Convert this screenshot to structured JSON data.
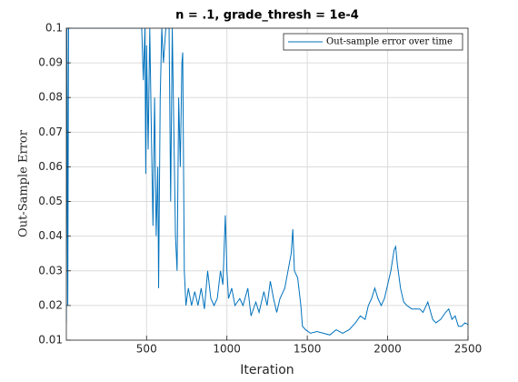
{
  "chart_data": {
    "type": "line",
    "title": "n = .1, grade_thresh = 1e-4",
    "xlabel": "Iteration",
    "ylabel": "Out-Sample Error",
    "x": [
      1,
      5,
      10,
      15,
      20,
      100,
      200,
      300,
      400,
      460,
      470,
      480,
      490,
      495,
      500,
      510,
      520,
      530,
      540,
      550,
      560,
      570,
      575,
      585,
      595,
      605,
      620,
      640,
      650,
      660,
      670,
      680,
      690,
      700,
      710,
      720,
      725,
      735,
      745,
      760,
      780,
      800,
      820,
      840,
      860,
      880,
      900,
      920,
      940,
      960,
      975,
      990,
      1000,
      1010,
      1030,
      1050,
      1080,
      1100,
      1130,
      1150,
      1180,
      1200,
      1230,
      1250,
      1270,
      1290,
      1310,
      1330,
      1360,
      1380,
      1400,
      1410,
      1420,
      1440,
      1460,
      1470,
      1490,
      1520,
      1560,
      1600,
      1640,
      1680,
      1720,
      1760,
      1800,
      1830,
      1860,
      1880,
      1900,
      1920,
      1940,
      1960,
      1980,
      2000,
      2020,
      2040,
      2050,
      2060,
      2080,
      2100,
      2120,
      2150,
      2200,
      2220,
      2250,
      2280,
      2300,
      2330,
      2360,
      2380,
      2400,
      2420,
      2440,
      2460,
      2480,
      2500
    ],
    "series": [
      {
        "name": "Out-sample error over time",
        "color": "#0072bd",
        "values": [
          0.015,
          0.1,
          0.02,
          0.1,
          0.1,
          0.1,
          0.1,
          0.1,
          0.1,
          0.1,
          0.1,
          0.085,
          0.1,
          0.058,
          0.095,
          0.065,
          0.1,
          0.07,
          0.043,
          0.08,
          0.04,
          0.06,
          0.025,
          0.08,
          0.1,
          0.09,
          0.1,
          0.1,
          0.05,
          0.1,
          0.07,
          0.04,
          0.03,
          0.08,
          0.06,
          0.09,
          0.093,
          0.03,
          0.02,
          0.025,
          0.02,
          0.024,
          0.02,
          0.025,
          0.019,
          0.03,
          0.022,
          0.02,
          0.022,
          0.03,
          0.026,
          0.046,
          0.03,
          0.022,
          0.025,
          0.02,
          0.022,
          0.02,
          0.025,
          0.017,
          0.021,
          0.018,
          0.024,
          0.02,
          0.027,
          0.022,
          0.018,
          0.022,
          0.025,
          0.03,
          0.035,
          0.042,
          0.03,
          0.028,
          0.02,
          0.014,
          0.013,
          0.012,
          0.0125,
          0.012,
          0.0115,
          0.013,
          0.012,
          0.013,
          0.015,
          0.017,
          0.016,
          0.02,
          0.022,
          0.025,
          0.022,
          0.02,
          0.022,
          0.026,
          0.03,
          0.036,
          0.037,
          0.032,
          0.025,
          0.021,
          0.02,
          0.019,
          0.019,
          0.018,
          0.021,
          0.016,
          0.015,
          0.016,
          0.018,
          0.019,
          0.016,
          0.017,
          0.014,
          0.014,
          0.015,
          0.0145
        ]
      }
    ],
    "xlim": [
      1,
      2500
    ],
    "xticks": [
      500,
      1000,
      1500,
      2000,
      2500
    ],
    "ylim": [
      0.01,
      0.1
    ],
    "yticks": [
      0.01,
      0.02,
      0.03,
      0.04,
      0.05,
      0.06,
      0.07,
      0.08,
      0.09,
      0.1
    ],
    "grid": true,
    "legend": "northeast"
  }
}
